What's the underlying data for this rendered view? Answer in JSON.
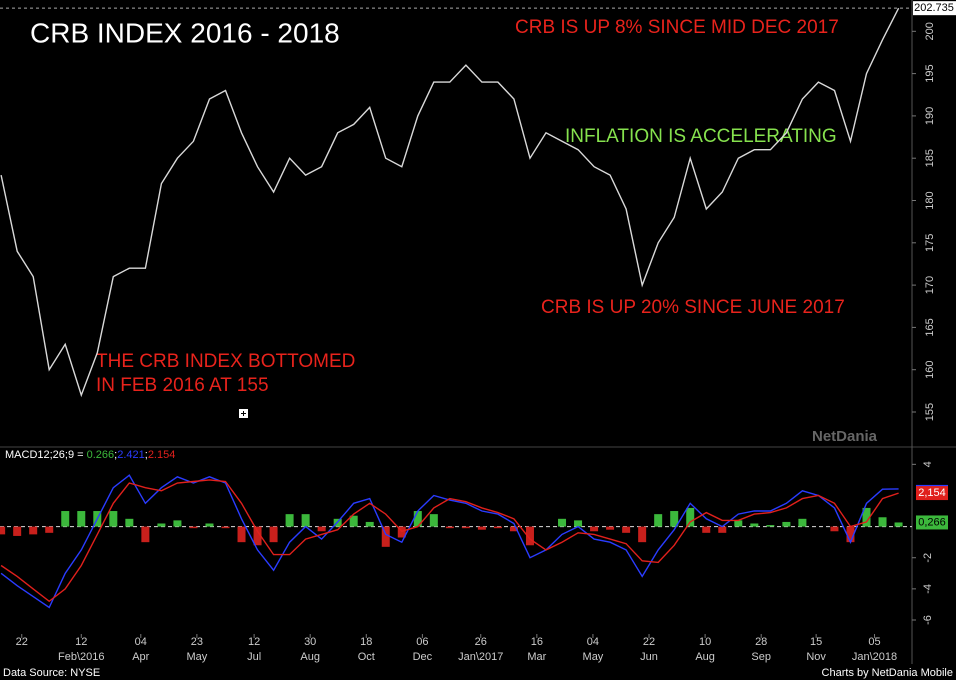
{
  "chart_data": {
    "type": "line",
    "title": "CRB INDEX 2016 - 2018",
    "annotations": [
      {
        "text": "CRB IS UP 8% SINCE MID DEC 2017",
        "color": "#e8231c"
      },
      {
        "text": "INFLATION IS ACCELERATING",
        "color": "#86e24e"
      },
      {
        "text": "CRB IS UP 20% SINCE JUNE 2017",
        "color": "#e8231c"
      },
      {
        "text": "THE CRB INDEX BOTTOMED",
        "color": "#e8231c"
      },
      {
        "text": "IN FEB 2016 AT 155",
        "color": "#e8231c"
      }
    ],
    "x": [
      "2015-12-04",
      "2015-12-18",
      "2016-01-01",
      "2016-01-15",
      "2016-01-29",
      "2016-02-12",
      "2016-02-26",
      "2016-03-11",
      "2016-03-25",
      "2016-04-08",
      "2016-04-22",
      "2016-05-06",
      "2016-05-20",
      "2016-06-03",
      "2016-06-17",
      "2016-07-01",
      "2016-07-15",
      "2016-07-29",
      "2016-08-12",
      "2016-08-26",
      "2016-09-09",
      "2016-09-23",
      "2016-10-07",
      "2016-10-21",
      "2016-11-04",
      "2016-11-18",
      "2016-12-02",
      "2016-12-16",
      "2016-12-30",
      "2017-01-13",
      "2017-01-27",
      "2017-02-10",
      "2017-02-24",
      "2017-03-10",
      "2017-03-24",
      "2017-04-07",
      "2017-04-21",
      "2017-05-05",
      "2017-05-19",
      "2017-06-02",
      "2017-06-16",
      "2017-06-30",
      "2017-07-14",
      "2017-07-28",
      "2017-08-11",
      "2017-08-25",
      "2017-09-08",
      "2017-09-22",
      "2017-10-06",
      "2017-10-20",
      "2017-11-03",
      "2017-11-17",
      "2017-12-01",
      "2017-12-15",
      "2017-12-29",
      "2018-01-12",
      "2018-01-26"
    ],
    "series": [
      {
        "color": "#d9d9d9",
        "values": [
          183,
          174,
          171,
          160,
          163,
          157,
          162,
          171,
          172,
          172,
          182,
          185,
          187,
          192,
          193,
          188,
          184,
          181,
          185,
          183,
          184,
          188,
          189,
          191,
          185,
          184,
          190,
          194,
          194,
          196,
          194,
          194,
          192,
          185,
          188,
          187,
          186,
          184,
          183,
          179,
          170,
          175,
          178,
          185,
          179,
          181,
          185,
          186,
          186,
          188,
          192,
          194,
          193,
          187,
          195,
          199,
          202.735
        ]
      },
      {
        "axis": "y2",
        "kind": "histogram",
        "up_color": "#3cb83c",
        "down_color": "#c8201c",
        "last_label": "0,266",
        "values": [
          -0.5,
          -0.6,
          -0.5,
          -0.4,
          1,
          1,
          1,
          1,
          0.5,
          -1,
          0.2,
          0.4,
          -0.1,
          0.2,
          -0.1,
          -1,
          -1.2,
          -1,
          0.8,
          0.8,
          -0.3,
          0.5,
          0.7,
          0.3,
          -1.3,
          -0.7,
          1,
          0.8,
          -0.1,
          -0.1,
          -0.2,
          -0.1,
          -0.3,
          -1.2,
          0,
          0.5,
          0.4,
          -0.3,
          -0.2,
          -0.4,
          -1,
          0.8,
          1,
          1.2,
          -0.4,
          -0.4,
          0.4,
          0.2,
          0.1,
          0.3,
          0.5,
          0,
          -0.3,
          -1,
          1.2,
          0.6,
          0.266
        ]
      },
      {
        "axis": "y2",
        "color": "#2a3cff",
        "values": [
          -3,
          -3.8,
          -4.5,
          -5.2,
          -3,
          -1.5,
          0.5,
          2.5,
          3.3,
          1.5,
          2.5,
          3.2,
          2.8,
          3.2,
          2.8,
          0.5,
          -1.5,
          -2.8,
          -1,
          0,
          -0.8,
          0.3,
          1.5,
          1.8,
          -0.5,
          -1,
          1,
          2,
          1.7,
          1.5,
          1,
          0.8,
          0.2,
          -2,
          -1.5,
          -0.5,
          0,
          -0.8,
          -1,
          -1.5,
          -3.2,
          -1.5,
          -0.2,
          1.5,
          0.5,
          0,
          0.8,
          1,
          1,
          1.5,
          2.3,
          2,
          1.2,
          -1,
          1.5,
          2.4,
          2.421
        ]
      },
      {
        "axis": "y2",
        "color": "#e0201c",
        "last_label": "2,154",
        "values": [
          -2.5,
          -3.2,
          -4,
          -4.8,
          -4,
          -2.5,
          -0.5,
          1.5,
          2.8,
          2.5,
          2.3,
          2.8,
          2.9,
          3,
          2.9,
          1.5,
          -0.3,
          -1.8,
          -1.8,
          -0.8,
          -0.5,
          -0.2,
          0.8,
          1.5,
          0.8,
          -0.3,
          0,
          1.2,
          1.8,
          1.6,
          1.2,
          0.9,
          0.5,
          -0.8,
          -1.5,
          -1,
          -0.4,
          -0.5,
          -0.8,
          -1.1,
          -2.2,
          -2.3,
          -1.2,
          0.3,
          0.9,
          0.4,
          0.4,
          0.8,
          0.9,
          1.2,
          1.8,
          2,
          1.5,
          0,
          0.3,
          1.8,
          2.154
        ]
      }
    ],
    "xlim": [
      "2015-12-03",
      "2018-02-05"
    ],
    "xticks": [
      {
        "value": "2015-12-22",
        "label": "22"
      },
      {
        "value": "2016-02-12",
        "label": "12"
      },
      {
        "value": "2016-04-04",
        "label": "04"
      },
      {
        "value": "2016-05-23",
        "label": "23"
      },
      {
        "value": "2016-07-12",
        "label": "12"
      },
      {
        "value": "2016-08-30",
        "label": "30"
      },
      {
        "value": "2016-10-18",
        "label": "18"
      },
      {
        "value": "2016-12-06",
        "label": "06"
      },
      {
        "value": "2017-01-26",
        "label": "26"
      },
      {
        "value": "2017-03-16",
        "label": "16"
      },
      {
        "value": "2017-05-04",
        "label": "04"
      },
      {
        "value": "2017-06-22",
        "label": "22"
      },
      {
        "value": "2017-08-10",
        "label": "10"
      },
      {
        "value": "2017-09-28",
        "label": "28"
      },
      {
        "value": "2017-11-15",
        "label": "15"
      },
      {
        "value": "2018-01-05",
        "label": "05"
      }
    ],
    "xtick_months": [
      {
        "value": "2016-02-12",
        "label": "Feb\\2016"
      },
      {
        "value": "2016-04-04",
        "label": "Apr"
      },
      {
        "value": "2016-05-23",
        "label": "May"
      },
      {
        "value": "2016-07-12",
        "label": "Jul"
      },
      {
        "value": "2016-08-30",
        "label": "Aug"
      },
      {
        "value": "2016-10-18",
        "label": "Oct"
      },
      {
        "value": "2016-12-06",
        "label": "Dec"
      },
      {
        "value": "2017-01-26",
        "label": "Jan\\2017"
      },
      {
        "value": "2017-03-16",
        "label": "Mar"
      },
      {
        "value": "2017-05-04",
        "label": "May"
      },
      {
        "value": "2017-06-22",
        "label": "Jun"
      },
      {
        "value": "2017-08-10",
        "label": "Aug"
      },
      {
        "value": "2017-09-28",
        "label": "Sep"
      },
      {
        "value": "2017-11-15",
        "label": "Nov"
      },
      {
        "value": "2018-01-05",
        "label": "Jan\\2018"
      }
    ],
    "ylim": [
      151.1,
      203.7
    ],
    "yticks": [
      155,
      160,
      165,
      170,
      175,
      180,
      185,
      190,
      195,
      200
    ],
    "y2lim": [
      -6.9,
      4.6
    ],
    "y2ticks": [
      -6,
      -4,
      -2,
      4
    ],
    "y2_label": "MACD12;26;9 = ",
    "y2_separator": ";",
    "watermark": "NetDania",
    "source": "Data Source: NYSE",
    "credit": "Charts by NetDania Mobile"
  }
}
